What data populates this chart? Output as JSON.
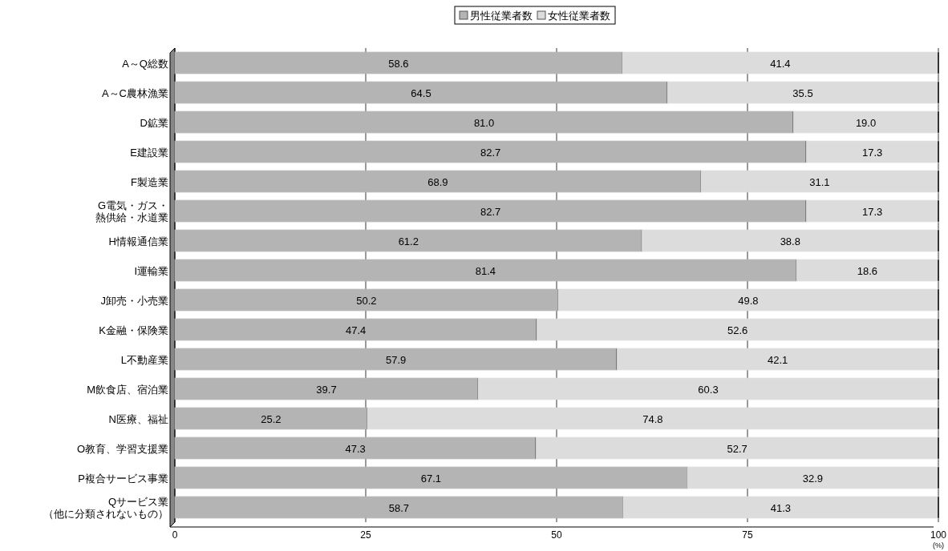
{
  "chart_data": {
    "type": "bar",
    "orientation": "horizontal",
    "stacked": true,
    "grid": "x",
    "legend": "top",
    "xlabel": "(%)",
    "categories": [
      "A～Q総数",
      "A～C農林漁業",
      "D鉱業",
      "E建設業",
      "F製造業",
      "G電気・ガス・熱供給・水道業",
      "H情報通信業",
      "I運輸業",
      "J卸売・小売業",
      "K金融・保険業",
      "L不動産業",
      "M飲食店、宿泊業",
      "N医療、福祉",
      "O教育、学習支援業",
      "P複合サービス事業",
      "Qサービス業（他に分類されないもの）"
    ],
    "xlim": [
      0,
      100
    ],
    "xticks": [
      0,
      25,
      50,
      75,
      100
    ],
    "series": [
      {
        "name": "男性従業者数",
        "color": "#b4b4b4",
        "values": [
          58.6,
          64.5,
          81.0,
          82.7,
          68.9,
          82.7,
          61.2,
          81.4,
          50.2,
          47.4,
          57.9,
          39.7,
          25.2,
          47.3,
          67.1,
          58.7
        ],
        "value_labels": [
          "58.6",
          "64.5",
          "81.0",
          "82.7",
          "68.9",
          "82.7",
          "61.2",
          "81.4",
          "50.2",
          "47.4",
          "57.9",
          "39.7",
          "25.2",
          "47.3",
          "67.1",
          "58.7"
        ]
      },
      {
        "name": "女性従業者数",
        "color": "#dcdcdc",
        "values": [
          41.4,
          35.5,
          19.0,
          17.3,
          31.1,
          17.3,
          38.8,
          18.6,
          49.8,
          52.6,
          42.1,
          60.3,
          74.8,
          52.7,
          32.9,
          41.3
        ],
        "value_labels": [
          "41.4",
          "35.5",
          "19.0",
          "17.3",
          "31.1",
          "17.3",
          "38.8",
          "18.6",
          "49.8",
          "52.6",
          "42.1",
          "60.3",
          "74.8",
          "52.7",
          "32.9",
          "41.3"
        ]
      }
    ]
  }
}
